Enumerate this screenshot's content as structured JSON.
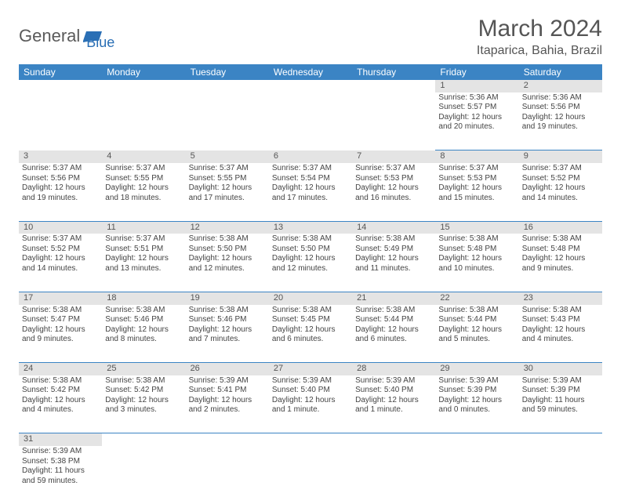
{
  "logo": {
    "general": "General",
    "blue": "Blue"
  },
  "title": "March 2024",
  "location": "Itaparica, Bahia, Brazil",
  "colors": {
    "header_bg": "#3b84c4",
    "header_text": "#ffffff",
    "daynum_bg": "#e4e4e4",
    "text": "#444444",
    "rule": "#3b84c4",
    "logo_gray": "#5a5a5a",
    "logo_blue": "#2a6fb5"
  },
  "days_of_week": [
    "Sunday",
    "Monday",
    "Tuesday",
    "Wednesday",
    "Thursday",
    "Friday",
    "Saturday"
  ],
  "weeks": [
    [
      null,
      null,
      null,
      null,
      null,
      {
        "n": "1",
        "sunrise": "Sunrise: 5:36 AM",
        "sunset": "Sunset: 5:57 PM",
        "day1": "Daylight: 12 hours",
        "day2": "and 20 minutes."
      },
      {
        "n": "2",
        "sunrise": "Sunrise: 5:36 AM",
        "sunset": "Sunset: 5:56 PM",
        "day1": "Daylight: 12 hours",
        "day2": "and 19 minutes."
      }
    ],
    [
      {
        "n": "3",
        "sunrise": "Sunrise: 5:37 AM",
        "sunset": "Sunset: 5:56 PM",
        "day1": "Daylight: 12 hours",
        "day2": "and 19 minutes."
      },
      {
        "n": "4",
        "sunrise": "Sunrise: 5:37 AM",
        "sunset": "Sunset: 5:55 PM",
        "day1": "Daylight: 12 hours",
        "day2": "and 18 minutes."
      },
      {
        "n": "5",
        "sunrise": "Sunrise: 5:37 AM",
        "sunset": "Sunset: 5:55 PM",
        "day1": "Daylight: 12 hours",
        "day2": "and 17 minutes."
      },
      {
        "n": "6",
        "sunrise": "Sunrise: 5:37 AM",
        "sunset": "Sunset: 5:54 PM",
        "day1": "Daylight: 12 hours",
        "day2": "and 17 minutes."
      },
      {
        "n": "7",
        "sunrise": "Sunrise: 5:37 AM",
        "sunset": "Sunset: 5:53 PM",
        "day1": "Daylight: 12 hours",
        "day2": "and 16 minutes."
      },
      {
        "n": "8",
        "sunrise": "Sunrise: 5:37 AM",
        "sunset": "Sunset: 5:53 PM",
        "day1": "Daylight: 12 hours",
        "day2": "and 15 minutes."
      },
      {
        "n": "9",
        "sunrise": "Sunrise: 5:37 AM",
        "sunset": "Sunset: 5:52 PM",
        "day1": "Daylight: 12 hours",
        "day2": "and 14 minutes."
      }
    ],
    [
      {
        "n": "10",
        "sunrise": "Sunrise: 5:37 AM",
        "sunset": "Sunset: 5:52 PM",
        "day1": "Daylight: 12 hours",
        "day2": "and 14 minutes."
      },
      {
        "n": "11",
        "sunrise": "Sunrise: 5:37 AM",
        "sunset": "Sunset: 5:51 PM",
        "day1": "Daylight: 12 hours",
        "day2": "and 13 minutes."
      },
      {
        "n": "12",
        "sunrise": "Sunrise: 5:38 AM",
        "sunset": "Sunset: 5:50 PM",
        "day1": "Daylight: 12 hours",
        "day2": "and 12 minutes."
      },
      {
        "n": "13",
        "sunrise": "Sunrise: 5:38 AM",
        "sunset": "Sunset: 5:50 PM",
        "day1": "Daylight: 12 hours",
        "day2": "and 12 minutes."
      },
      {
        "n": "14",
        "sunrise": "Sunrise: 5:38 AM",
        "sunset": "Sunset: 5:49 PM",
        "day1": "Daylight: 12 hours",
        "day2": "and 11 minutes."
      },
      {
        "n": "15",
        "sunrise": "Sunrise: 5:38 AM",
        "sunset": "Sunset: 5:48 PM",
        "day1": "Daylight: 12 hours",
        "day2": "and 10 minutes."
      },
      {
        "n": "16",
        "sunrise": "Sunrise: 5:38 AM",
        "sunset": "Sunset: 5:48 PM",
        "day1": "Daylight: 12 hours",
        "day2": "and 9 minutes."
      }
    ],
    [
      {
        "n": "17",
        "sunrise": "Sunrise: 5:38 AM",
        "sunset": "Sunset: 5:47 PM",
        "day1": "Daylight: 12 hours",
        "day2": "and 9 minutes."
      },
      {
        "n": "18",
        "sunrise": "Sunrise: 5:38 AM",
        "sunset": "Sunset: 5:46 PM",
        "day1": "Daylight: 12 hours",
        "day2": "and 8 minutes."
      },
      {
        "n": "19",
        "sunrise": "Sunrise: 5:38 AM",
        "sunset": "Sunset: 5:46 PM",
        "day1": "Daylight: 12 hours",
        "day2": "and 7 minutes."
      },
      {
        "n": "20",
        "sunrise": "Sunrise: 5:38 AM",
        "sunset": "Sunset: 5:45 PM",
        "day1": "Daylight: 12 hours",
        "day2": "and 6 minutes."
      },
      {
        "n": "21",
        "sunrise": "Sunrise: 5:38 AM",
        "sunset": "Sunset: 5:44 PM",
        "day1": "Daylight: 12 hours",
        "day2": "and 6 minutes."
      },
      {
        "n": "22",
        "sunrise": "Sunrise: 5:38 AM",
        "sunset": "Sunset: 5:44 PM",
        "day1": "Daylight: 12 hours",
        "day2": "and 5 minutes."
      },
      {
        "n": "23",
        "sunrise": "Sunrise: 5:38 AM",
        "sunset": "Sunset: 5:43 PM",
        "day1": "Daylight: 12 hours",
        "day2": "and 4 minutes."
      }
    ],
    [
      {
        "n": "24",
        "sunrise": "Sunrise: 5:38 AM",
        "sunset": "Sunset: 5:42 PM",
        "day1": "Daylight: 12 hours",
        "day2": "and 4 minutes."
      },
      {
        "n": "25",
        "sunrise": "Sunrise: 5:38 AM",
        "sunset": "Sunset: 5:42 PM",
        "day1": "Daylight: 12 hours",
        "day2": "and 3 minutes."
      },
      {
        "n": "26",
        "sunrise": "Sunrise: 5:39 AM",
        "sunset": "Sunset: 5:41 PM",
        "day1": "Daylight: 12 hours",
        "day2": "and 2 minutes."
      },
      {
        "n": "27",
        "sunrise": "Sunrise: 5:39 AM",
        "sunset": "Sunset: 5:40 PM",
        "day1": "Daylight: 12 hours",
        "day2": "and 1 minute."
      },
      {
        "n": "28",
        "sunrise": "Sunrise: 5:39 AM",
        "sunset": "Sunset: 5:40 PM",
        "day1": "Daylight: 12 hours",
        "day2": "and 1 minute."
      },
      {
        "n": "29",
        "sunrise": "Sunrise: 5:39 AM",
        "sunset": "Sunset: 5:39 PM",
        "day1": "Daylight: 12 hours",
        "day2": "and 0 minutes."
      },
      {
        "n": "30",
        "sunrise": "Sunrise: 5:39 AM",
        "sunset": "Sunset: 5:39 PM",
        "day1": "Daylight: 11 hours",
        "day2": "and 59 minutes."
      }
    ],
    [
      {
        "n": "31",
        "sunrise": "Sunrise: 5:39 AM",
        "sunset": "Sunset: 5:38 PM",
        "day1": "Daylight: 11 hours",
        "day2": "and 59 minutes."
      },
      null,
      null,
      null,
      null,
      null,
      null
    ]
  ]
}
